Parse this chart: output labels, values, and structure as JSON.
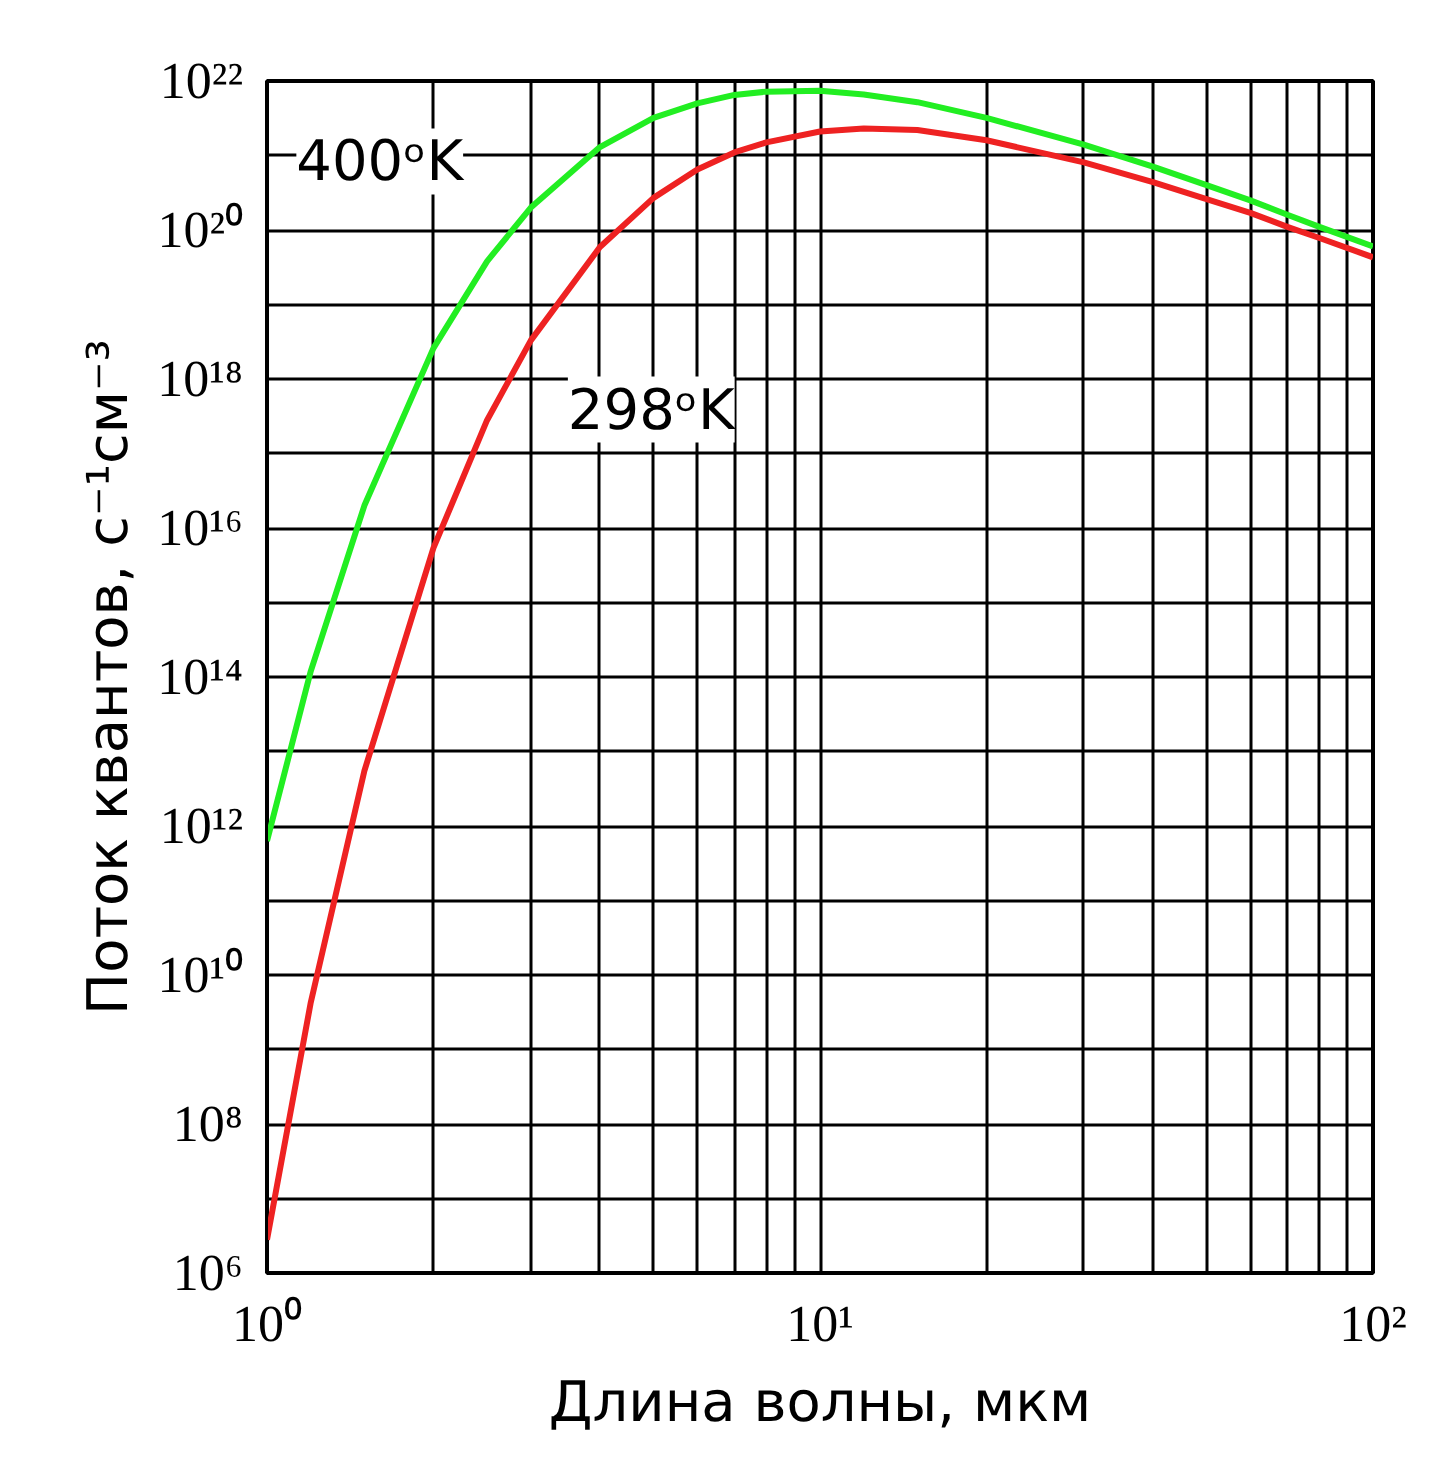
{
  "chart_data": {
    "type": "line",
    "xlabel": "Длина волны, мкм",
    "ylabel": "Поток квантов, с⁻¹см⁻³",
    "x": [
      1,
      1.2,
      1.5,
      2,
      2.5,
      3,
      4,
      5,
      6,
      7,
      8,
      10,
      12,
      15,
      20,
      30,
      40,
      50,
      60,
      70,
      80,
      100
    ],
    "series": [
      {
        "name": "400ᵒK",
        "color": "#22ee22",
        "values": [
          630000000000.0,
          120000000000000.0,
          2e+16,
          2.6e+18,
          3.8e+19,
          2e+20,
          1.3e+21,
          3.2e+21,
          5e+21,
          6.5e+21,
          7.2e+21,
          7.4e+21,
          6.6e+21,
          5.2e+21,
          3.2e+21,
          1.4e+21,
          7.1e+20,
          4e+20,
          2.5e+20,
          1.6e+20,
          1.1e+20,
          6e+19
        ]
      },
      {
        "name": "298ᵒK",
        "color": "#ee2222",
        "values": [
          2800000.0,
          4300000000.0,
          5500000000000.0,
          5400000000000000.0,
          2.8e+17,
          3.3e+18,
          5.9e+19,
          2.7e+20,
          6.5e+20,
          1.1e+21,
          1.5e+21,
          2.1e+21,
          2.3e+21,
          2.2e+21,
          1.6e+21,
          8.1e+20,
          4.4e+20,
          2.6e+20,
          1.7e+20,
          1.1e+20,
          7.8e+19,
          4.3e+19
        ]
      }
    ],
    "log": "xy",
    "xlim": [
      1,
      100
    ],
    "ylim": [
      1000000.0,
      1e+22
    ],
    "xticks": [
      {
        "value": 1,
        "label": "10⁰"
      },
      {
        "value": 2,
        "label": null
      },
      {
        "value": 3,
        "label": null
      },
      {
        "value": 4,
        "label": null
      },
      {
        "value": 5,
        "label": null
      },
      {
        "value": 6,
        "label": null
      },
      {
        "value": 7,
        "label": null
      },
      {
        "value": 8,
        "label": null
      },
      {
        "value": 9,
        "label": null
      },
      {
        "value": 10,
        "label": "10¹"
      },
      {
        "value": 20,
        "label": null
      },
      {
        "value": 30,
        "label": null
      },
      {
        "value": 40,
        "label": null
      },
      {
        "value": 50,
        "label": null
      },
      {
        "value": 60,
        "label": null
      },
      {
        "value": 70,
        "label": null
      },
      {
        "value": 80,
        "label": null
      },
      {
        "value": 90,
        "label": null
      },
      {
        "value": 100,
        "label": "10²"
      }
    ],
    "yticks": [
      {
        "value": 1000000.0,
        "label": "10⁶"
      },
      {
        "value": 10000000.0,
        "label": null
      },
      {
        "value": 100000000.0,
        "label": "10⁸"
      },
      {
        "value": 1000000000.0,
        "label": null
      },
      {
        "value": 10000000000.0,
        "label": "10¹⁰"
      },
      {
        "value": 100000000000.0,
        "label": null
      },
      {
        "value": 1000000000000.0,
        "label": "10¹²"
      },
      {
        "value": 10000000000000.0,
        "label": null
      },
      {
        "value": 100000000000000.0,
        "label": "10¹⁴"
      },
      {
        "value": 1000000000000000.0,
        "label": null
      },
      {
        "value": 1e+16,
        "label": "10¹⁶"
      },
      {
        "value": 1e+17,
        "label": null
      },
      {
        "value": 1e+18,
        "label": "10¹⁸"
      },
      {
        "value": 1e+19,
        "label": null
      },
      {
        "value": 1e+20,
        "label": "10²⁰"
      },
      {
        "value": 1e+21,
        "label": null
      },
      {
        "value": 1e+22,
        "label": "10²²"
      }
    ],
    "grid": true,
    "line_style": "solid",
    "marker": "none"
  }
}
